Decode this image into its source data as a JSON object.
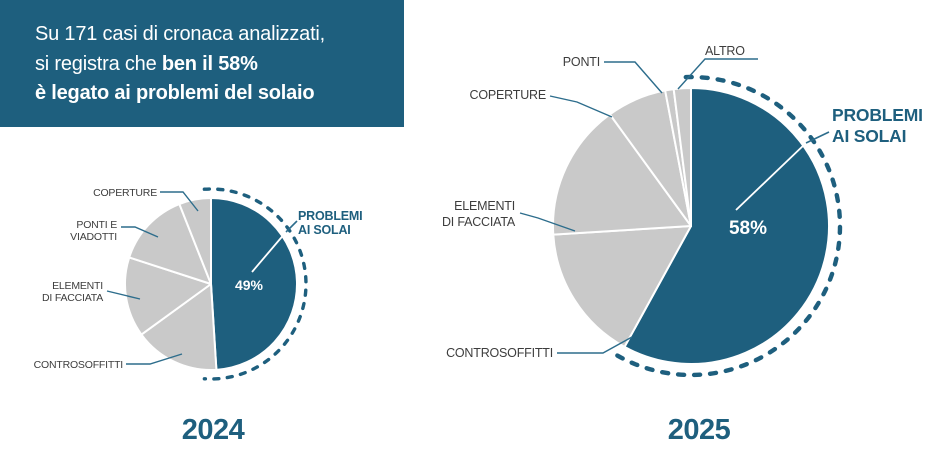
{
  "headline": {
    "line1": "Su 171 casi di cronaca analizzati,",
    "line2_regular": "si registra che",
    "line2_bold": "ben il 58%",
    "line3_bold": "è legato ai problemi del solaio"
  },
  "colors": {
    "accent_teal": "#1e5f7e",
    "slice_gray": "#c9c9c9",
    "label_gray": "#3d3d3d",
    "leader_line": "#2d6d8c",
    "highlight_text": "#ffffff"
  },
  "chart_data": [
    {
      "type": "pie",
      "year": "2024",
      "start_angle_deg": 0,
      "direction": "clockwise",
      "slices": [
        {
          "label": "PROBLEMI AI SOLAI",
          "pct": 49,
          "highlight": true,
          "pct_is_estimate": false
        },
        {
          "label": "CONTROSOFFITTI",
          "pct": 16,
          "highlight": false,
          "pct_is_estimate": true
        },
        {
          "label": "ELEMENTI DI FACCIATA",
          "pct": 15,
          "highlight": false,
          "pct_is_estimate": true
        },
        {
          "label": "PONTI E VIADOTTI",
          "pct": 14,
          "highlight": false,
          "pct_is_estimate": true
        },
        {
          "label": "COPERTURE",
          "pct": 6,
          "highlight": false,
          "pct_is_estimate": true
        }
      ],
      "callouts": {
        "coperture": [
          "COPERTURE"
        ],
        "ponti": [
          "PONTI E",
          "VIADOTTI"
        ],
        "elementi": [
          "ELEMENTI",
          "DI FACCIATA"
        ],
        "controsoffitti": [
          "CONTROSOFFITTI"
        ],
        "highlight": [
          "PROBLEMI",
          "AI SOLAI"
        ],
        "value": "49%"
      }
    },
    {
      "type": "pie",
      "year": "2025",
      "start_angle_deg": 0,
      "direction": "clockwise",
      "slices": [
        {
          "label": "PROBLEMI AI SOLAI",
          "pct": 58,
          "highlight": true,
          "pct_is_estimate": false
        },
        {
          "label": "CONTROSOFFITTI",
          "pct": 16,
          "highlight": false,
          "pct_is_estimate": true
        },
        {
          "label": "ELEMENTI DI FACCIATA",
          "pct": 16,
          "highlight": false,
          "pct_is_estimate": true
        },
        {
          "label": "COPERTURE",
          "pct": 7,
          "highlight": false,
          "pct_is_estimate": true
        },
        {
          "label": "PONTI",
          "pct": 1,
          "highlight": false,
          "pct_is_estimate": true
        },
        {
          "label": "ALTRO",
          "pct": 2,
          "highlight": false,
          "pct_is_estimate": true
        }
      ],
      "callouts": {
        "coperture": [
          "COPERTURE"
        ],
        "ponti": [
          "PONTI"
        ],
        "altro": [
          "ALTRO"
        ],
        "elementi": [
          "ELEMENTI",
          "DI FACCIATA"
        ],
        "controsoffitti": [
          "CONTROSOFFITTI"
        ],
        "highlight": [
          "PROBLEMI",
          "AI SOLAI"
        ],
        "value": "58%"
      }
    }
  ]
}
